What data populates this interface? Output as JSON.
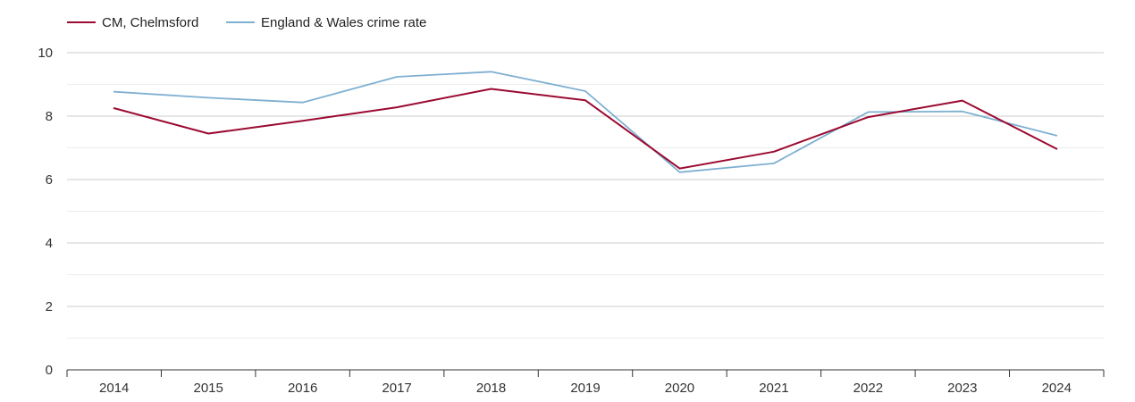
{
  "chart_data": {
    "type": "line",
    "title": "",
    "xlabel": "",
    "ylabel": "",
    "x": [
      "2014",
      "2015",
      "2016",
      "2017",
      "2018",
      "2019",
      "2020",
      "2021",
      "2022",
      "2023",
      "2024"
    ],
    "ylim": [
      0,
      10
    ],
    "yticks": [
      "0",
      "2",
      "4",
      "6",
      "8",
      "10"
    ],
    "grid": true,
    "legend_position": "top-left",
    "series": [
      {
        "name": "CM, Chelmsford",
        "color": "#9b0a31",
        "values": [
          8.25,
          7.45,
          7.85,
          8.28,
          8.86,
          8.5,
          6.35,
          6.88,
          7.97,
          8.49,
          6.97
        ]
      },
      {
        "name": "England & Wales crime rate",
        "color": "#7fb0d1",
        "values": [
          8.77,
          8.58,
          8.43,
          9.24,
          9.4,
          8.79,
          6.23,
          6.51,
          8.13,
          8.15,
          7.39
        ]
      }
    ]
  }
}
